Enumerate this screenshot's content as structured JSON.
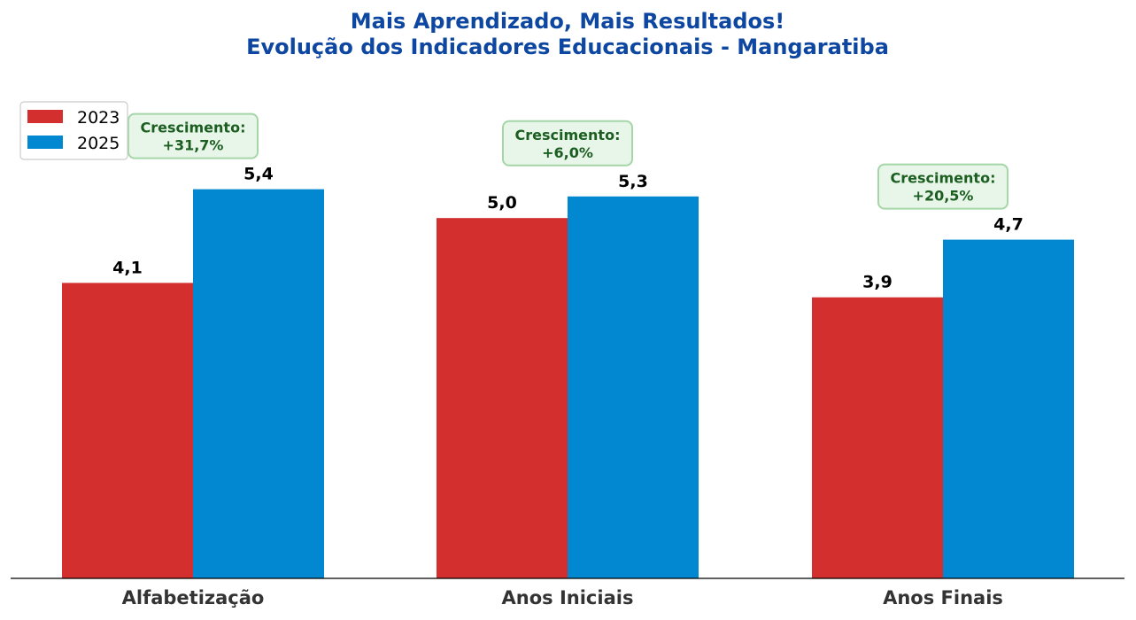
{
  "chart_data": {
    "type": "bar",
    "title": "Mais Aprendizado, Mais Resultados!",
    "subtitle": "Evolução dos Indicadores Educacionais - Mangaratiba",
    "categories": [
      "Alfabetização",
      "Anos Iniciais",
      "Anos Finais"
    ],
    "series": [
      {
        "name": "2023",
        "values": [
          4.1,
          5.0,
          3.9
        ],
        "labels": [
          "4,1",
          "5,0",
          "3,9"
        ],
        "color": "#d32f2f"
      },
      {
        "name": "2025",
        "values": [
          5.4,
          5.3,
          4.7
        ],
        "labels": [
          "5,4",
          "5,3",
          "4,7"
        ],
        "color": "#0288d1"
      }
    ],
    "annotations": [
      {
        "category": "Alfabetização",
        "heading": "Crescimento:",
        "value": "+31,7%"
      },
      {
        "category": "Anos Iniciais",
        "heading": "Crescimento:",
        "value": "+6,0%"
      },
      {
        "category": "Anos Finais",
        "heading": "Crescimento:",
        "value": "+20,5%"
      }
    ],
    "ylim": [
      0,
      6.6
    ],
    "grid": false,
    "legend_position": "top-left",
    "colors": {
      "title": "#0d47a1",
      "annotation_text": "#1b5e20",
      "annotation_fill": "#e8f5e9",
      "annotation_border": "#a5d6a7",
      "axis": "#000000"
    }
  }
}
